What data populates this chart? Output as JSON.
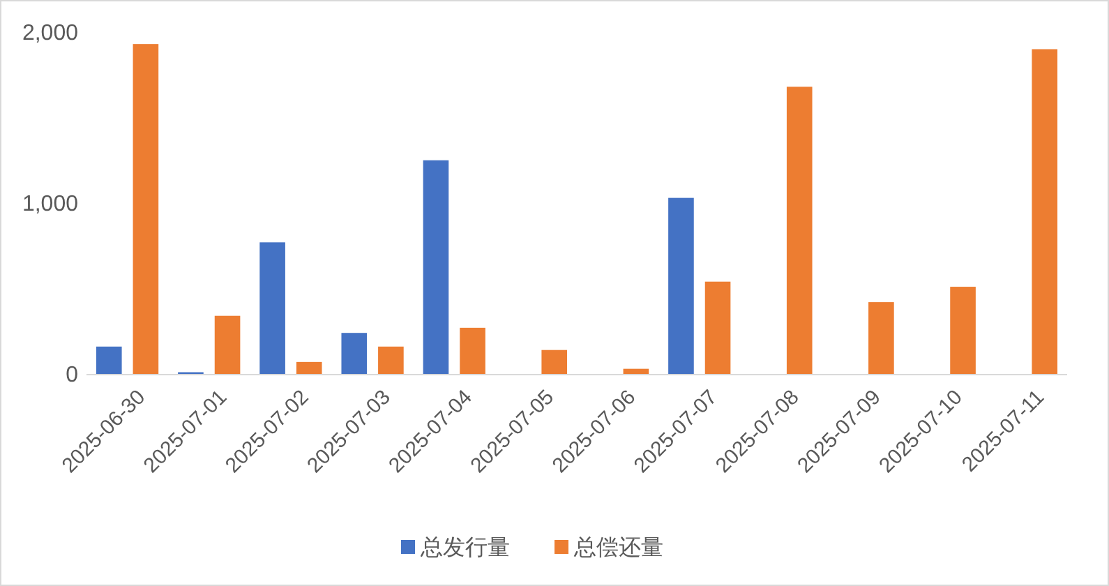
{
  "chart_data": {
    "type": "bar",
    "categories": [
      "2025-06-30",
      "2025-07-01",
      "2025-07-02",
      "2025-07-03",
      "2025-07-04",
      "2025-07-05",
      "2025-07-06",
      "2025-07-07",
      "2025-07-08",
      "2025-07-09",
      "2025-07-10",
      "2025-07-11"
    ],
    "series": [
      {
        "name": "总发行量",
        "color": "#4472c4",
        "values": [
          160,
          10,
          770,
          240,
          1250,
          0,
          0,
          1030,
          0,
          0,
          0,
          0
        ]
      },
      {
        "name": "总偿还量",
        "color": "#ed7d31",
        "values": [
          1930,
          340,
          70,
          160,
          270,
          140,
          30,
          540,
          1680,
          420,
          510,
          1900
        ]
      }
    ],
    "ylim": [
      0,
      2000
    ],
    "yticks": [
      0,
      {
        "value": 1000,
        "label": "1,000"
      },
      {
        "value": 2000,
        "label": "2,000"
      }
    ],
    "grid": false,
    "legend": "bottom"
  }
}
